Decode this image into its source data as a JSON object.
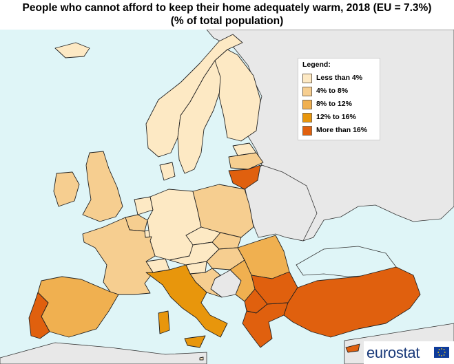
{
  "title": {
    "line1": "People who cannot afford to keep their home adequately warm, 2018 (EU = 7.3%)",
    "line2": "(% of total population)"
  },
  "legend": {
    "title": "Legend:",
    "items": [
      {
        "label": "Less than 4%",
        "color": "#fde9c4"
      },
      {
        "label": "4% to 8%",
        "color": "#f6ce90"
      },
      {
        "label": "8% to 12%",
        "color": "#f0b050"
      },
      {
        "label": "12% to 16%",
        "color": "#e8960c"
      },
      {
        "label": "More than 16%",
        "color": "#e0600e"
      }
    ]
  },
  "colors": {
    "sea": "#dff5f7",
    "non_eu": "#e8e8e8",
    "borders": "#333333"
  },
  "countries": {
    "norway": 0,
    "sweden": 0,
    "finland": 0,
    "estonia": 0,
    "latvia": 1,
    "lithuania": 4,
    "ireland": 1,
    "united-kingdom": 1,
    "iceland": 0,
    "denmark": 0,
    "netherlands": 0,
    "belgium": 1,
    "luxembourg": 0,
    "germany": 0,
    "poland": 1,
    "czechia": 0,
    "austria": 0,
    "switzerland": 0,
    "france": 1,
    "spain": 2,
    "portugal": 4,
    "italy": 3,
    "slovakia": 1,
    "hungary": 1,
    "romania": 2,
    "slovenia": 0,
    "croatia": 1,
    "serbia": 2,
    "bulgaria": 4,
    "north-macedonia": 4,
    "greece": 4,
    "turkey": 4,
    "malta": 0,
    "cyprus": 4
  },
  "brand": {
    "name": "eurostat"
  }
}
